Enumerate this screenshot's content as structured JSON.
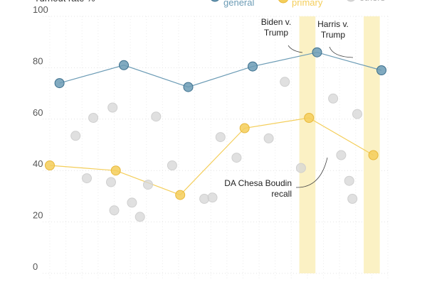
{
  "chart_data": {
    "type": "scatter",
    "title_partial": "Turnout rate %",
    "ylim": [
      0,
      100
    ],
    "y_ticks": [
      0,
      20,
      40,
      60,
      80,
      100
    ],
    "grid": true,
    "legend": {
      "placement": "top",
      "entries": [
        {
          "label": "general",
          "color": "#6B9BB5"
        },
        {
          "label": "primary",
          "color": "#F4CE5A"
        },
        {
          "label": "others",
          "color": "#D6D6D6"
        }
      ]
    },
    "highlight_bands": [
      {
        "x": 16.0,
        "color": "#FBF1C4"
      },
      {
        "x": 20.0,
        "color": "#FBF1C4"
      }
    ],
    "series": [
      {
        "name": "general",
        "color": "#6B9BB5",
        "line": true,
        "points": [
          [
            0.6,
            74
          ],
          [
            4.6,
            81
          ],
          [
            8.6,
            72.5
          ],
          [
            12.6,
            80.5
          ],
          [
            16.6,
            86
          ],
          [
            20.6,
            79
          ]
        ]
      },
      {
        "name": "primary",
        "color": "#F4CE5A",
        "line": true,
        "points": [
          [
            0,
            42
          ],
          [
            4.1,
            40
          ],
          [
            8.1,
            30.5
          ],
          [
            12.1,
            56.5
          ],
          [
            16.1,
            60.5
          ],
          [
            20.1,
            46
          ]
        ]
      },
      {
        "name": "others",
        "color": "#D6D6D6",
        "line": false,
        "points": [
          [
            1.6,
            53.5
          ],
          [
            2.3,
            37
          ],
          [
            2.7,
            60.5
          ],
          [
            3.8,
            35.5
          ],
          [
            3.9,
            64.5
          ],
          [
            4,
            24.5
          ],
          [
            5.1,
            27.5
          ],
          [
            5.6,
            22
          ],
          [
            6.1,
            34.5
          ],
          [
            6.6,
            61
          ],
          [
            7.6,
            42
          ],
          [
            9.6,
            29
          ],
          [
            10.1,
            29.5
          ],
          [
            10.6,
            53
          ],
          [
            11.6,
            45
          ],
          [
            13.6,
            52.5
          ],
          [
            14.6,
            74.5
          ],
          [
            15.6,
            41
          ],
          [
            17.6,
            68
          ],
          [
            18.1,
            46
          ],
          [
            18.6,
            36
          ],
          [
            18.8,
            29
          ],
          [
            19.1,
            62
          ]
        ]
      }
    ],
    "annotations": [
      {
        "lines": [
          "Biden v.",
          "Trump"
        ],
        "target_x": 16.0,
        "target_y": 86
      },
      {
        "lines": [
          "Harris v.",
          "Trump"
        ],
        "target_x": 20.0,
        "target_y": 79
      },
      {
        "lines": [
          "DA Chesa Boudin",
          "recall"
        ],
        "target_x": 18.0,
        "target_y": 46
      }
    ]
  }
}
